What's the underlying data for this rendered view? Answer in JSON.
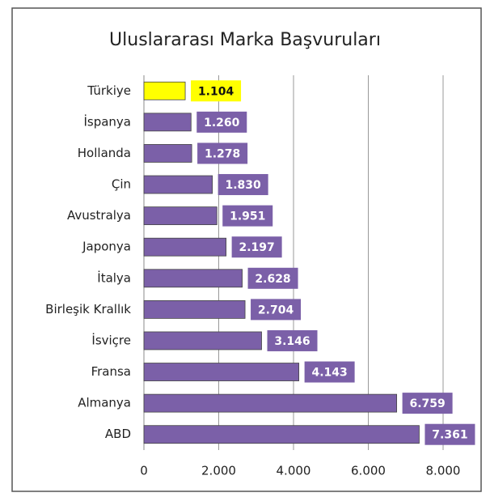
{
  "chart_data": {
    "type": "bar",
    "orientation": "horizontal",
    "title": "Uluslararası Marka Başvuruları",
    "categories": [
      "Türkiye",
      "İspanya",
      "Hollanda",
      "Çin",
      "Avustralya",
      "Japonya",
      "İtalya",
      "Birleşik Krallık",
      "İsviçre",
      "Fransa",
      "Almanya",
      "ABD"
    ],
    "values": [
      1104,
      1260,
      1278,
      1830,
      1951,
      2197,
      2628,
      2704,
      3146,
      4143,
      6759,
      7361
    ],
    "value_labels": [
      "1.104",
      "1.260",
      "1.278",
      "1.830",
      "1.951",
      "2.197",
      "2.628",
      "2.704",
      "3.146",
      "4.143",
      "6.759",
      "7.361"
    ],
    "colors": [
      "#ffff00",
      "#7b60a8",
      "#7b60a8",
      "#7b60a8",
      "#7b60a8",
      "#7b60a8",
      "#7b60a8",
      "#7b60a8",
      "#7b60a8",
      "#7b60a8",
      "#7b60a8",
      "#7b60a8"
    ],
    "xlim": [
      0,
      8000
    ],
    "xticks": [
      0,
      {
        "value": 2000,
        "label": "2.000"
      },
      {
        "value": 4000,
        "label": "4.000"
      },
      {
        "value": 6000,
        "label": "6.000"
      },
      {
        "value": 8000,
        "label": "8.000"
      }
    ],
    "grid": true
  }
}
